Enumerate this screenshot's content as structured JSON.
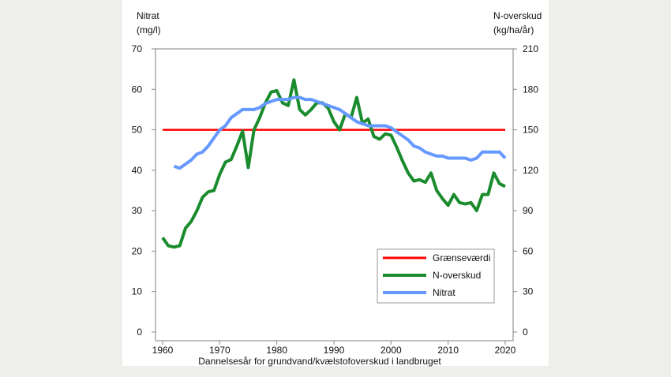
{
  "chart_data": {
    "type": "line",
    "left_axis_label": [
      "Nitrat",
      "(mg/l)"
    ],
    "right_axis_label": [
      "N-overskud",
      "(kg/ha/år)"
    ],
    "xlabel": "Dannelsesår for grundvand/kvælstofoverskud i landbruget",
    "xlim": [
      1960,
      2020
    ],
    "xticks": [
      1960,
      1970,
      1980,
      1990,
      2000,
      2010,
      2020
    ],
    "ylim_left": [
      0,
      70
    ],
    "yticks_left": [
      0,
      10,
      20,
      30,
      40,
      50,
      60,
      70
    ],
    "ylim_right": [
      0,
      210
    ],
    "yticks_right": [
      0,
      30,
      60,
      90,
      120,
      150,
      180,
      210
    ],
    "legend_position": "bottom-right",
    "grid": false,
    "series": [
      {
        "name": "Grænseværdi",
        "axis": "left",
        "color": "#ff0000",
        "x": [
          1960,
          2020
        ],
        "values": [
          50,
          50
        ]
      },
      {
        "name": "N-overskud",
        "axis": "right",
        "color": "#1a8c2e",
        "x": [
          1960,
          1961,
          1962,
          1963,
          1964,
          1965,
          1966,
          1967,
          1968,
          1969,
          1970,
          1971,
          1972,
          1973,
          1974,
          1975,
          1976,
          1977,
          1978,
          1979,
          1980,
          1981,
          1982,
          1983,
          1984,
          1985,
          1986,
          1987,
          1988,
          1989,
          1990,
          1991,
          1992,
          1993,
          1994,
          1995,
          1996,
          1997,
          1998,
          1999,
          2000,
          2001,
          2002,
          2003,
          2004,
          2005,
          2006,
          2007,
          2008,
          2009,
          2010,
          2011,
          2012,
          2013,
          2014,
          2015,
          2016,
          2017,
          2018,
          2019,
          2020
        ],
        "values": [
          70,
          64,
          63,
          64,
          77,
          82,
          90,
          100,
          104,
          105,
          117,
          126,
          128,
          138,
          149,
          122,
          150,
          159,
          170,
          178,
          179,
          170,
          168,
          187,
          165,
          161,
          165,
          170,
          170,
          166,
          156,
          150,
          162,
          159,
          174,
          155,
          158,
          145,
          143,
          147,
          146,
          137,
          127,
          118,
          112,
          113,
          111,
          118,
          105,
          99,
          94,
          102,
          96,
          95,
          96,
          90,
          102,
          102,
          118,
          110,
          108
        ]
      },
      {
        "name": "Nitrat",
        "axis": "left",
        "color": "#6699ff",
        "x": [
          1962,
          1963,
          1964,
          1965,
          1966,
          1967,
          1968,
          1969,
          1970,
          1971,
          1972,
          1973,
          1974,
          1975,
          1976,
          1977,
          1978,
          1979,
          1980,
          1981,
          1982,
          1983,
          1984,
          1985,
          1986,
          1987,
          1988,
          1989,
          1990,
          1991,
          1992,
          1993,
          1994,
          1995,
          1996,
          1997,
          1998,
          1999,
          2000,
          2001,
          2002,
          2003,
          2004,
          2005,
          2006,
          2007,
          2008,
          2009,
          2010,
          2011,
          2012,
          2013,
          2014,
          2015,
          2016,
          2017,
          2018,
          2019,
          2020
        ],
        "values": [
          41,
          40.5,
          41.5,
          42.5,
          44,
          44.5,
          46,
          48,
          50,
          51,
          53,
          54,
          55,
          55,
          55,
          55.5,
          56.5,
          57,
          57.5,
          57.5,
          57.5,
          58,
          58,
          57.5,
          57.5,
          57,
          56.5,
          56,
          55.5,
          55,
          54,
          53,
          52,
          51.5,
          51,
          51,
          51,
          51,
          50.5,
          49.5,
          48.5,
          47.5,
          46,
          45.5,
          44.5,
          44,
          43.5,
          43.5,
          43,
          43,
          43,
          43,
          42.5,
          43,
          44.5,
          44.5,
          44.5,
          44.5,
          43
        ]
      }
    ]
  }
}
